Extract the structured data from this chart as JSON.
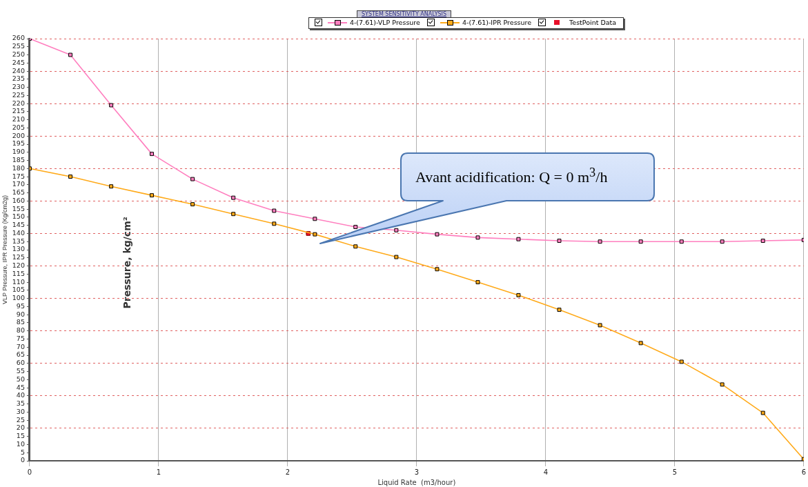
{
  "chart_data": {
    "type": "line",
    "title": "SYSTEM SENSITIVITY ANALYSIS",
    "xlabel": "Liquid Rate  (m3/hour)",
    "ylabel": "VLP Pressure, IPR Pressure (Kg/cm2g)",
    "x": [
      0,
      0.316,
      0.632,
      0.947,
      1.263,
      1.579,
      1.895,
      2.211,
      2.526,
      2.842,
      3.158,
      3.474,
      3.789,
      4.105,
      4.421,
      4.737,
      5.053,
      5.368,
      5.684,
      6
    ],
    "series": [
      {
        "name": "4-(7.61)-VLP Pressure",
        "color": "#ff7fbf",
        "values": [
          260,
          250,
          219,
          189,
          173.5,
          162,
          154,
          149,
          144,
          142,
          139.5,
          137.5,
          136.5,
          135.5,
          135,
          135,
          135,
          135,
          135.5,
          136
        ]
      },
      {
        "name": "4-(7.61)-IPR Pressure",
        "color": "#ffaa1a",
        "values": [
          180,
          175,
          169,
          163.5,
          158,
          152,
          146,
          139.5,
          132,
          125.5,
          118,
          110,
          102,
          93,
          83.5,
          72.5,
          61,
          47,
          29.5,
          1
        ]
      },
      {
        "name": "TestPoint Data",
        "type": "scatter",
        "color": "#e8102a",
        "x": [
          2.16
        ],
        "values": [
          140
        ]
      }
    ],
    "annotations": [
      "Avant acidification: Q = 0 m$^{3}$/h",
      "Pressure, kg/cm²"
    ],
    "xlim": [
      0,
      6
    ],
    "xticks": [
      0,
      1,
      2,
      3,
      4,
      5,
      6
    ],
    "ylim": [
      0,
      260
    ],
    "yticks": [
      0,
      5,
      10,
      15,
      20,
      25,
      30,
      35,
      40,
      45,
      50,
      55,
      60,
      65,
      70,
      75,
      80,
      85,
      90,
      95,
      100,
      105,
      110,
      115,
      120,
      125,
      130,
      135,
      140,
      145,
      150,
      155,
      160,
      165,
      170,
      175,
      180,
      185,
      190,
      195,
      200,
      205,
      210,
      215,
      220,
      225,
      230,
      235,
      240,
      245,
      250,
      255,
      260
    ],
    "grid": true,
    "legend": "top",
    "marker": "square",
    "line_style": "solid"
  }
}
